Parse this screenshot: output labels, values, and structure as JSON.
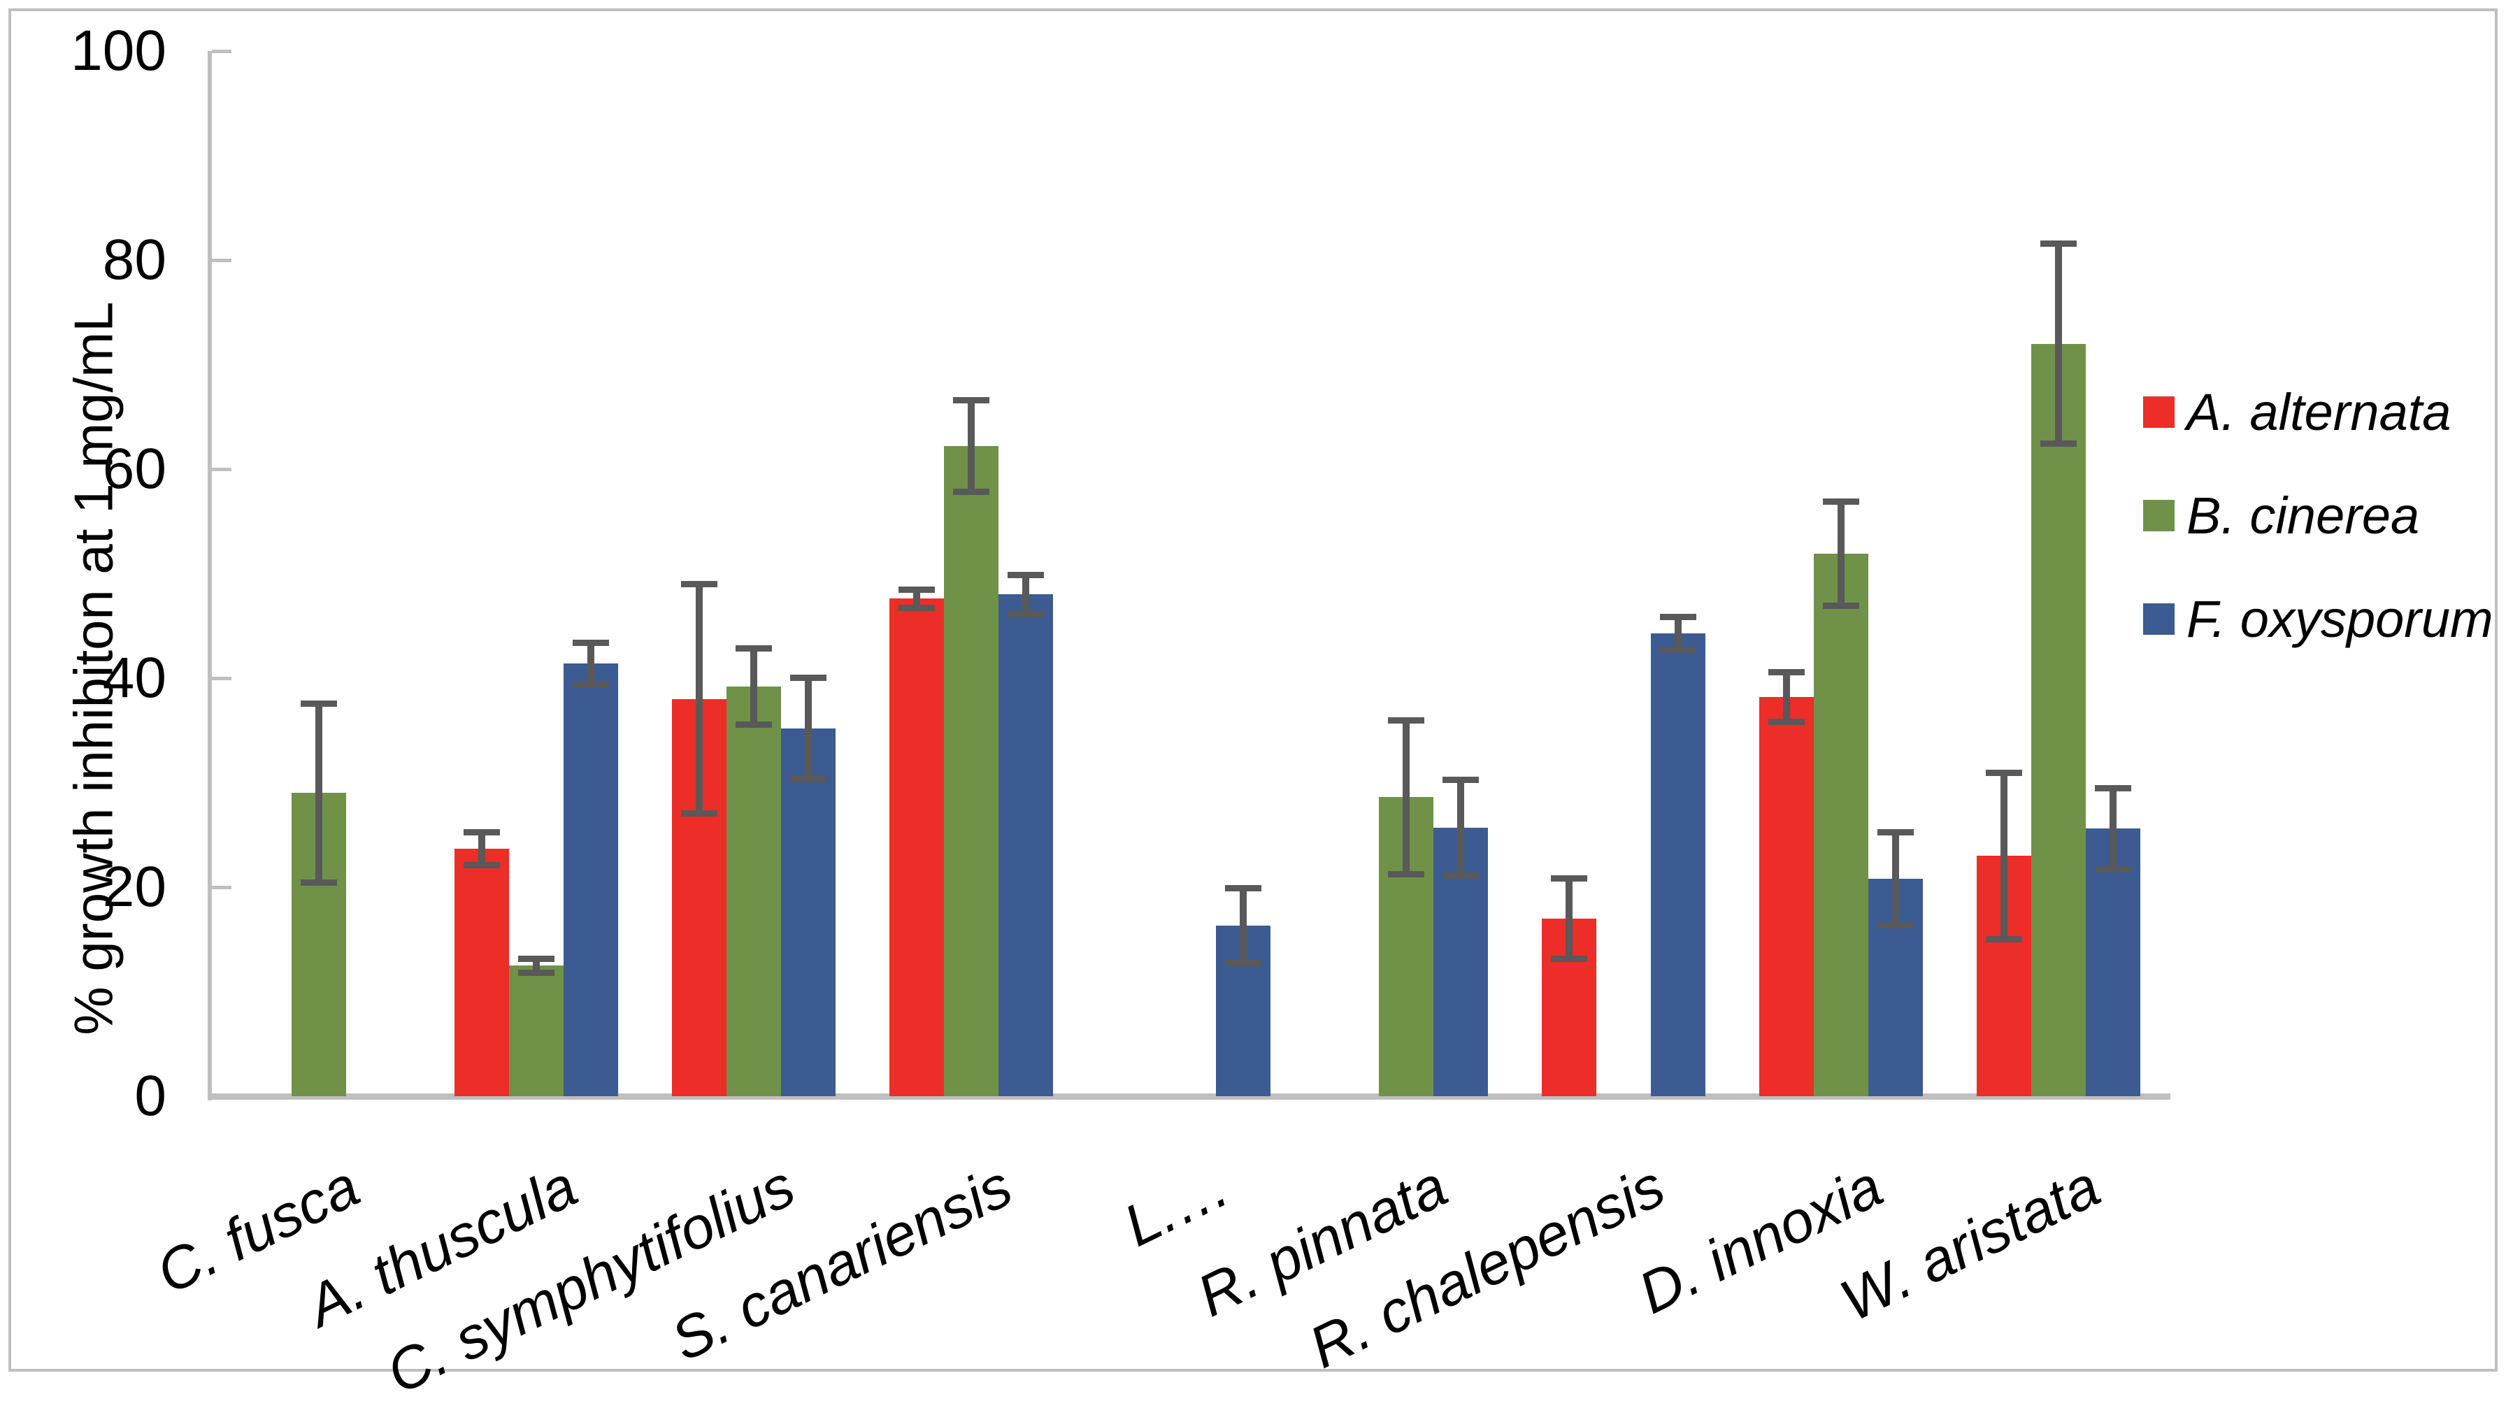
{
  "figure": {
    "background": "#FFFFFF",
    "border_color": "#BFBFBF"
  },
  "chart_data": {
    "type": "bar",
    "title": "",
    "xlabel": "",
    "ylabel": "% growth inhibiton at 1 mg/mL",
    "ylim": [
      0,
      100
    ],
    "yticks": [
      0,
      20,
      40,
      60,
      80,
      100
    ],
    "grid": false,
    "legend_position": "right",
    "axis_color": "#BFBFBF",
    "error_bar_color": "#595959",
    "categories": [
      "C. fusca",
      "A. thuscula",
      "C. symphytifolius",
      "S. canariensis",
      "L.…",
      "R. pinnata",
      "R. chalepensis",
      "D. innoxia",
      "W. aristata"
    ],
    "series": [
      {
        "name": "A. alternata",
        "color": "#ED2D28",
        "values": [
          null,
          23.7,
          38.0,
          47.6,
          null,
          null,
          17.0,
          38.2,
          23.0
        ],
        "errors": [
          null,
          1.6,
          11.0,
          0.9,
          null,
          null,
          3.9,
          2.4,
          8.0
        ]
      },
      {
        "name": "B. cinerea",
        "color": "#6F9248",
        "values": [
          29.0,
          12.5,
          39.2,
          62.2,
          null,
          28.6,
          null,
          51.9,
          72.0
        ],
        "errors": [
          8.6,
          0.7,
          3.7,
          4.4,
          null,
          7.4,
          null,
          5.0,
          9.6
        ]
      },
      {
        "name": "F. oxysporum",
        "color": "#3B5B92",
        "values": [
          null,
          41.4,
          35.2,
          48.0,
          16.3,
          25.7,
          44.3,
          20.8,
          25.6
        ],
        "errors": [
          null,
          2.0,
          4.9,
          1.9,
          3.6,
          4.6,
          1.6,
          4.5,
          3.9
        ]
      }
    ]
  }
}
